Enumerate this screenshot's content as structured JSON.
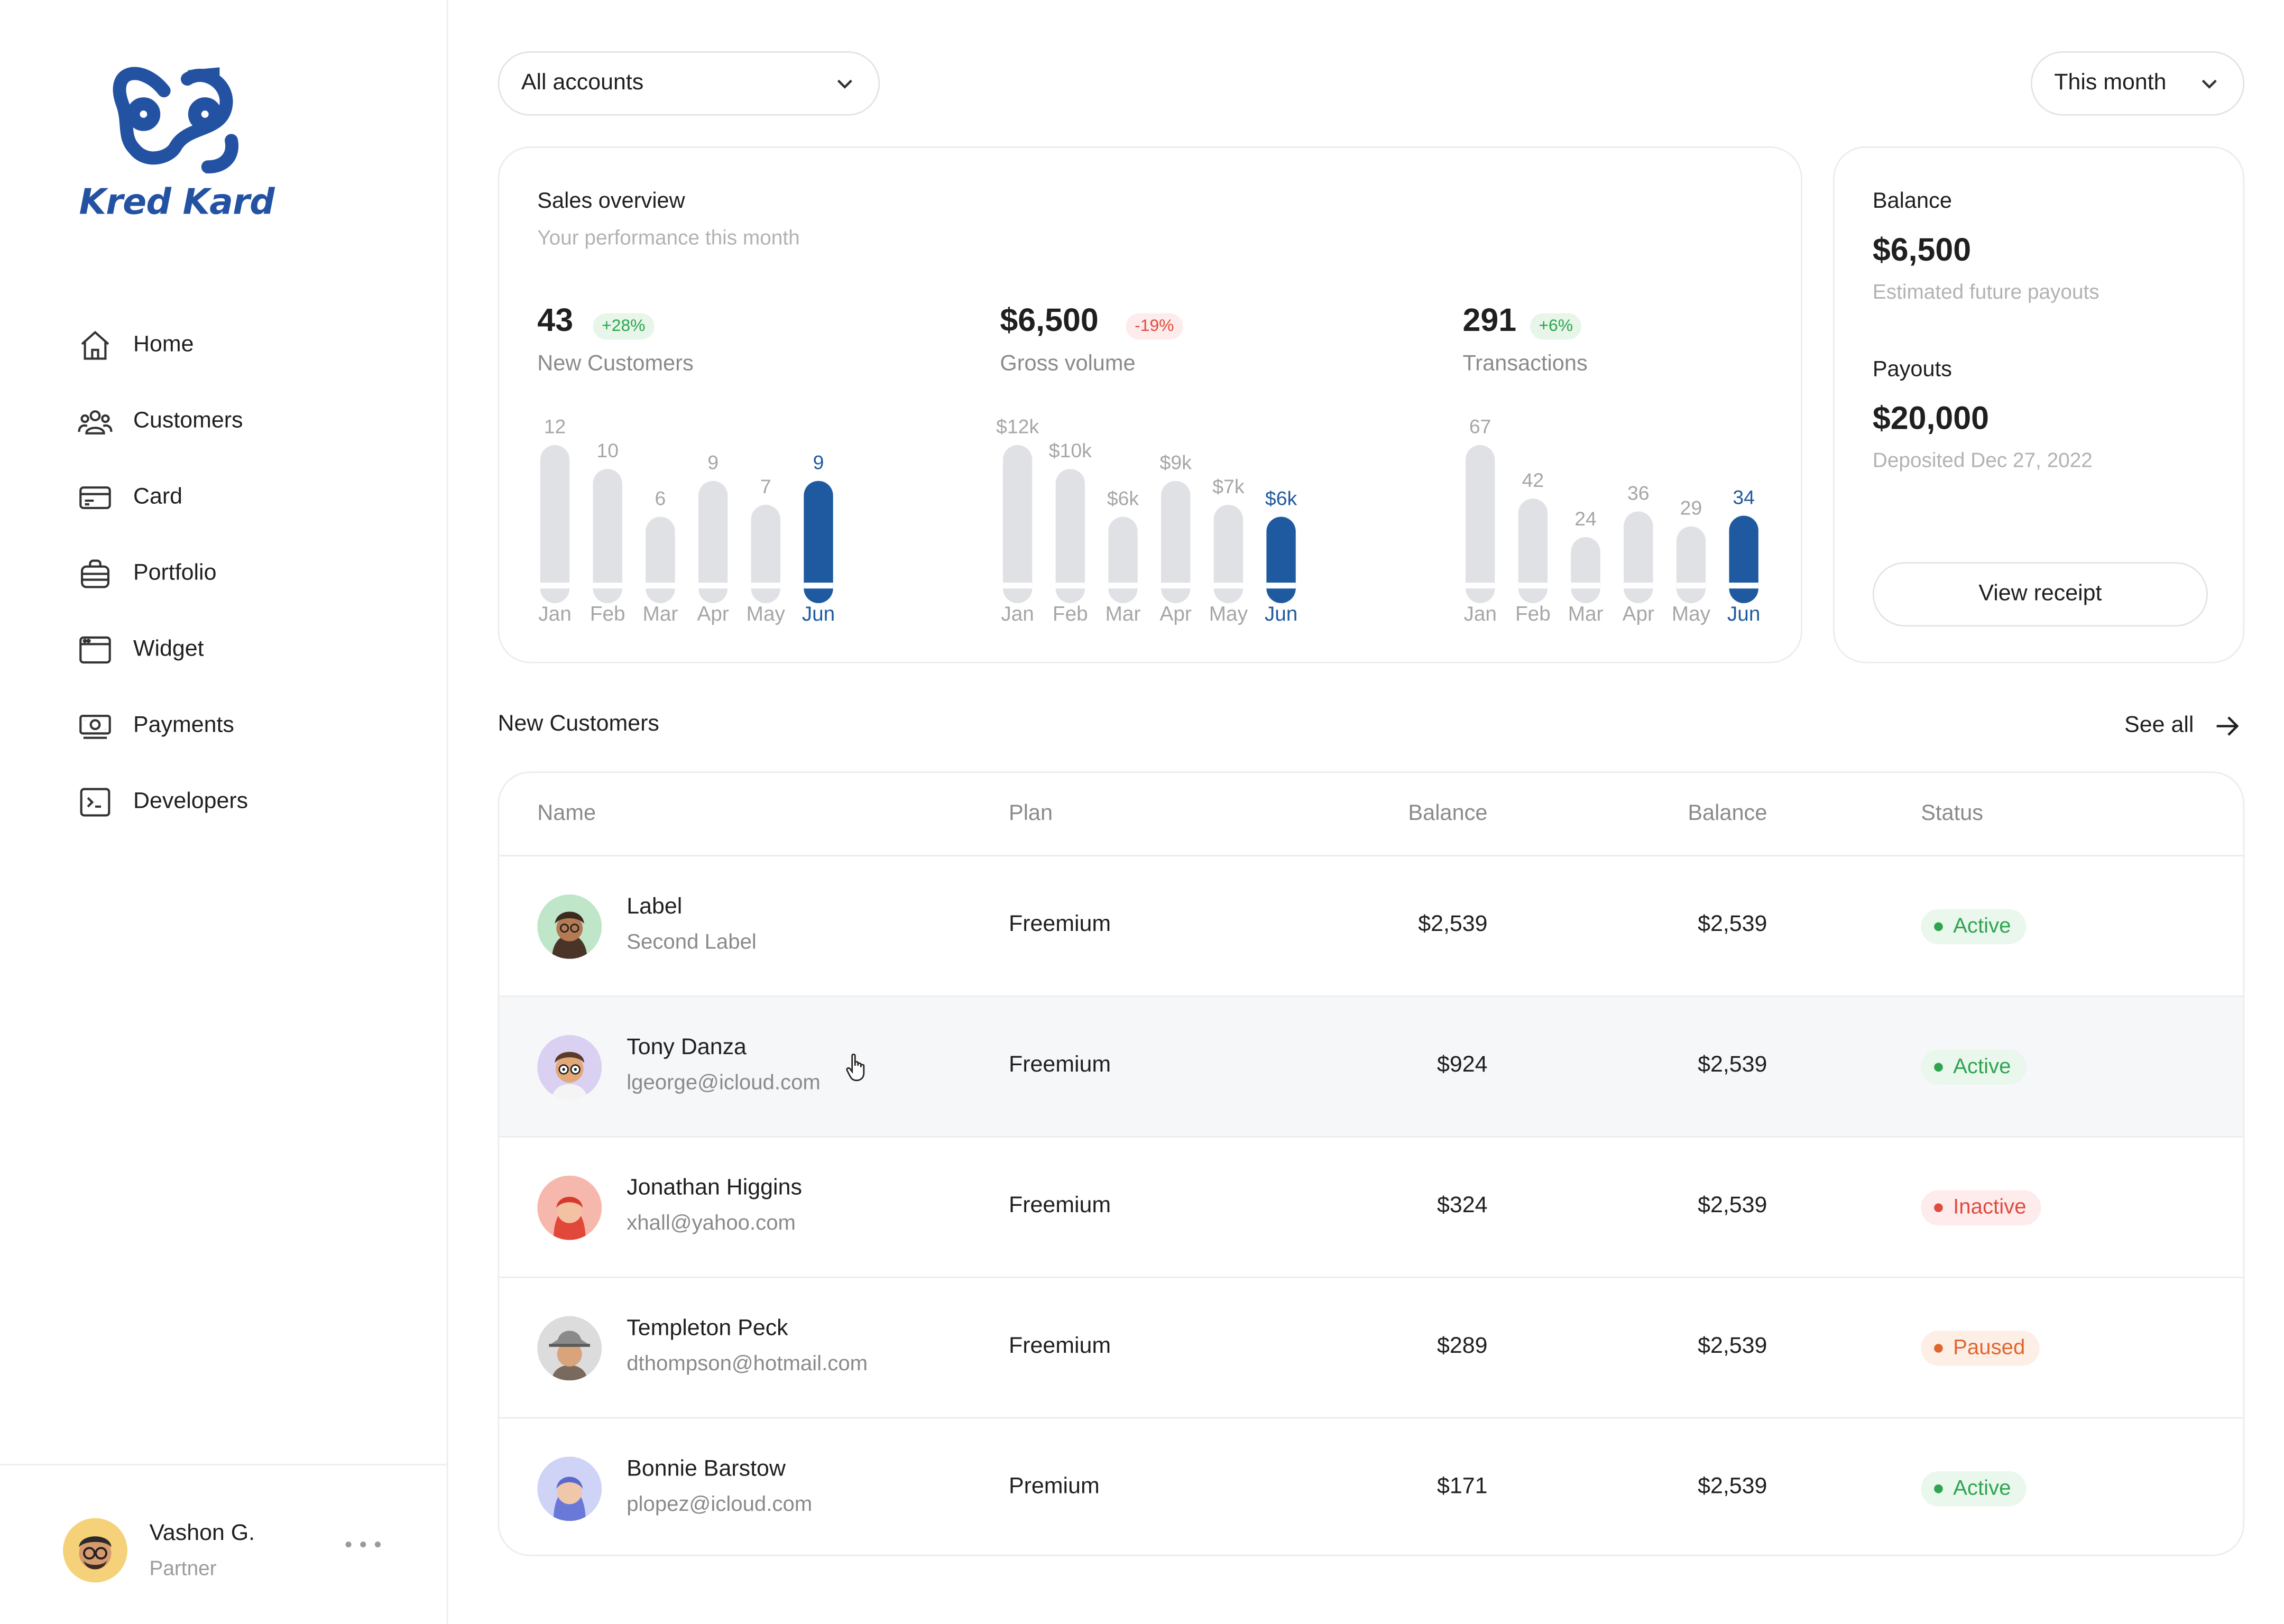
{
  "app": {
    "brand": "Kred Kard",
    "accent": "#1f5aa0",
    "logo_color": "#2452a3"
  },
  "sidebar": {
    "items": [
      {
        "label": "Home",
        "icon": "home-icon"
      },
      {
        "label": "Customers",
        "icon": "users-icon"
      },
      {
        "label": "Card",
        "icon": "credit-card-icon"
      },
      {
        "label": "Portfolio",
        "icon": "briefcase-icon"
      },
      {
        "label": "Widget",
        "icon": "window-icon"
      },
      {
        "label": "Payments",
        "icon": "banknote-icon"
      },
      {
        "label": "Developers",
        "icon": "terminal-icon"
      }
    ],
    "user": {
      "name": "Vashon G.",
      "role": "Partner"
    }
  },
  "filters": {
    "account": "All accounts",
    "period": "This month"
  },
  "sales": {
    "title": "Sales overview",
    "subtitle": "Your performance this month",
    "metrics": [
      {
        "value": "43",
        "change": "+28%",
        "trend": "up",
        "label": "New Customers"
      },
      {
        "value": "$6,500",
        "change": "-19%",
        "trend": "down",
        "label": "Gross volume"
      },
      {
        "value": "291",
        "change": "+6%",
        "trend": "up",
        "label": "Transactions"
      }
    ]
  },
  "chart_data": [
    {
      "type": "bar",
      "categories": [
        "Jan",
        "Feb",
        "Mar",
        "Apr",
        "May",
        "Jun"
      ],
      "values": [
        12,
        10,
        6,
        9,
        7,
        9
      ],
      "value_labels": [
        "12",
        "10",
        "6",
        "9",
        "7",
        "9"
      ],
      "highlight": "Jun",
      "bar_color": "#dfe1e5",
      "highlight_color": "#1f5aa0"
    },
    {
      "type": "bar",
      "categories": [
        "Jan",
        "Feb",
        "Mar",
        "Apr",
        "May",
        "Jun"
      ],
      "values": [
        12,
        10,
        6,
        9,
        7,
        6
      ],
      "value_labels": [
        "$12k",
        "$10k",
        "$6k",
        "$9k",
        "$7k",
        "$6k"
      ],
      "highlight": "Jun",
      "bar_color": "#dfe1e5",
      "highlight_color": "#1f5aa0"
    },
    {
      "type": "bar",
      "categories": [
        "Jan",
        "Feb",
        "Mar",
        "Apr",
        "May",
        "Jun"
      ],
      "values": [
        67,
        42,
        24,
        36,
        29,
        34
      ],
      "value_labels": [
        "67",
        "42",
        "24",
        "36",
        "29",
        "34"
      ],
      "highlight": "Jun",
      "bar_color": "#dfe1e5",
      "highlight_color": "#1f5aa0"
    }
  ],
  "balance": {
    "label": "Balance",
    "amount": "$6,500",
    "note": "Estimated future payouts",
    "payouts_label": "Payouts",
    "payouts_amount": "$20,000",
    "payouts_note": "Deposited Dec 27, 2022",
    "button": "View receipt"
  },
  "customers": {
    "title": "New Customers",
    "see_all": "See all",
    "columns": [
      "Name",
      "Plan",
      "Balance",
      "Balance",
      "Status"
    ],
    "rows": [
      {
        "name": "Label",
        "email": "Second Label",
        "plan": "Freemium",
        "balance": "$2,539",
        "balance2": "$2,539",
        "status": "Active",
        "avatar_bg": "#bfe6c8"
      },
      {
        "name": "Tony Danza",
        "email": "lgeorge@icloud.com",
        "plan": "Freemium",
        "balance": "$924",
        "balance2": "$2,539",
        "status": "Active",
        "avatar_bg": "#d9d0f2"
      },
      {
        "name": "Jonathan Higgins",
        "email": "xhall@yahoo.com",
        "plan": "Freemium",
        "balance": "$324",
        "balance2": "$2,539",
        "status": "Inactive",
        "avatar_bg": "#f6b8ad"
      },
      {
        "name": "Templeton Peck",
        "email": "dthompson@hotmail.com",
        "plan": "Freemium",
        "balance": "$289",
        "balance2": "$2,539",
        "status": "Paused",
        "avatar_bg": "#dcdcdc"
      },
      {
        "name": "Bonnie Barstow",
        "email": "plopez@icloud.com",
        "plan": "Premium",
        "balance": "$171",
        "balance2": "$2,539",
        "status": "Active",
        "avatar_bg": "#cfd3f5"
      }
    ]
  }
}
